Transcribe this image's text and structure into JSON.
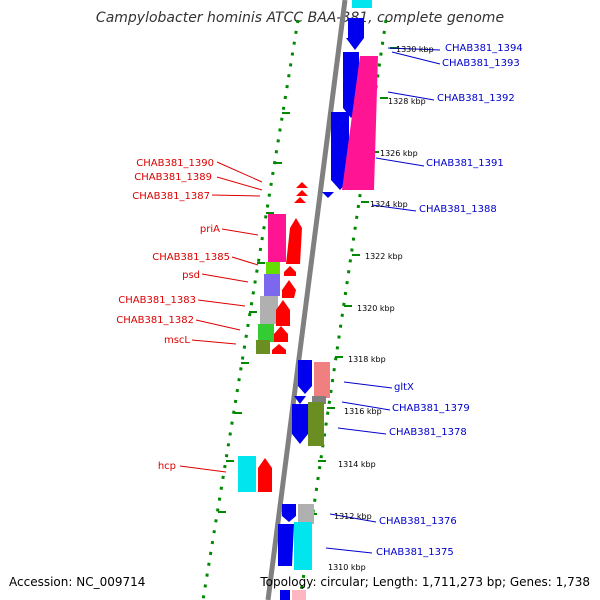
{
  "title": "Campylobacter hominis ATCC BAA-381, complete genome",
  "footer": {
    "accession": "Accession: NC_009714",
    "topology": "Topology: circular; Length: 1,711,273 bp; Genes: 1,738"
  },
  "colors": {
    "minus_strand_label": "#dd0000",
    "plus_strand_label": "#0000cc",
    "backbone": "#808080",
    "dotted_track": "#008800"
  },
  "ticks": [
    "1330 kbp",
    "1328 kbp",
    "1326 kbp",
    "1324 kbp",
    "1322 kbp",
    "1320 kbp",
    "1318 kbp",
    "1316 kbp",
    "1314 kbp",
    "1312 kbp",
    "1310 kbp"
  ],
  "left_labels": [
    "CHAB381_1390",
    "CHAB381_1389",
    "CHAB381_1387",
    "priA",
    "CHAB381_1385",
    "psd",
    "CHAB381_1383",
    "CHAB381_1382",
    "mscL",
    "hcp"
  ],
  "right_labels": [
    "CHAB381_1394",
    "CHAB381_1393",
    "CHAB381_1392",
    "CHAB381_1391",
    "CHAB381_1388",
    "gltX",
    "CHAB381_1379",
    "CHAB381_1378",
    "CHAB381_1376",
    "CHAB381_1375"
  ]
}
